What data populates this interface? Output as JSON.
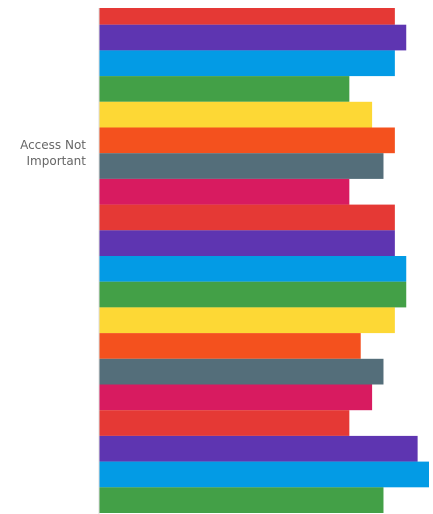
{
  "chart_data": {
    "type": "barh",
    "categories": [
      "Access Not Important"
    ],
    "xlim": [
      0,
      29
    ],
    "series": [
      {
        "color": "#e53935",
        "values": [
          26
        ]
      },
      {
        "color": "#5e35b1",
        "values": [
          27
        ]
      },
      {
        "color": "#039be5",
        "values": [
          26
        ]
      },
      {
        "color": "#43a047",
        "values": [
          22
        ]
      },
      {
        "color": "#fdd835",
        "values": [
          24
        ]
      },
      {
        "color": "#f4511e",
        "values": [
          26
        ]
      },
      {
        "color": "#546e7a",
        "values": [
          25
        ]
      },
      {
        "color": "#d81b60",
        "values": [
          22
        ]
      },
      {
        "color": "#e53935",
        "values": [
          26
        ]
      },
      {
        "color": "#5e35b1",
        "values": [
          26
        ]
      },
      {
        "color": "#039be5",
        "values": [
          27
        ]
      },
      {
        "color": "#43a047",
        "values": [
          27
        ]
      },
      {
        "color": "#fdd835",
        "values": [
          26
        ]
      },
      {
        "color": "#f4511e",
        "values": [
          23
        ]
      },
      {
        "color": "#546e7a",
        "values": [
          25
        ]
      },
      {
        "color": "#d81b60",
        "values": [
          24
        ]
      },
      {
        "color": "#e53935",
        "values": [
          22
        ]
      },
      {
        "color": "#5e35b1",
        "values": [
          28
        ]
      },
      {
        "color": "#039be5",
        "values": [
          29
        ]
      },
      {
        "color": "#43a047",
        "values": [
          25
        ]
      }
    ]
  }
}
